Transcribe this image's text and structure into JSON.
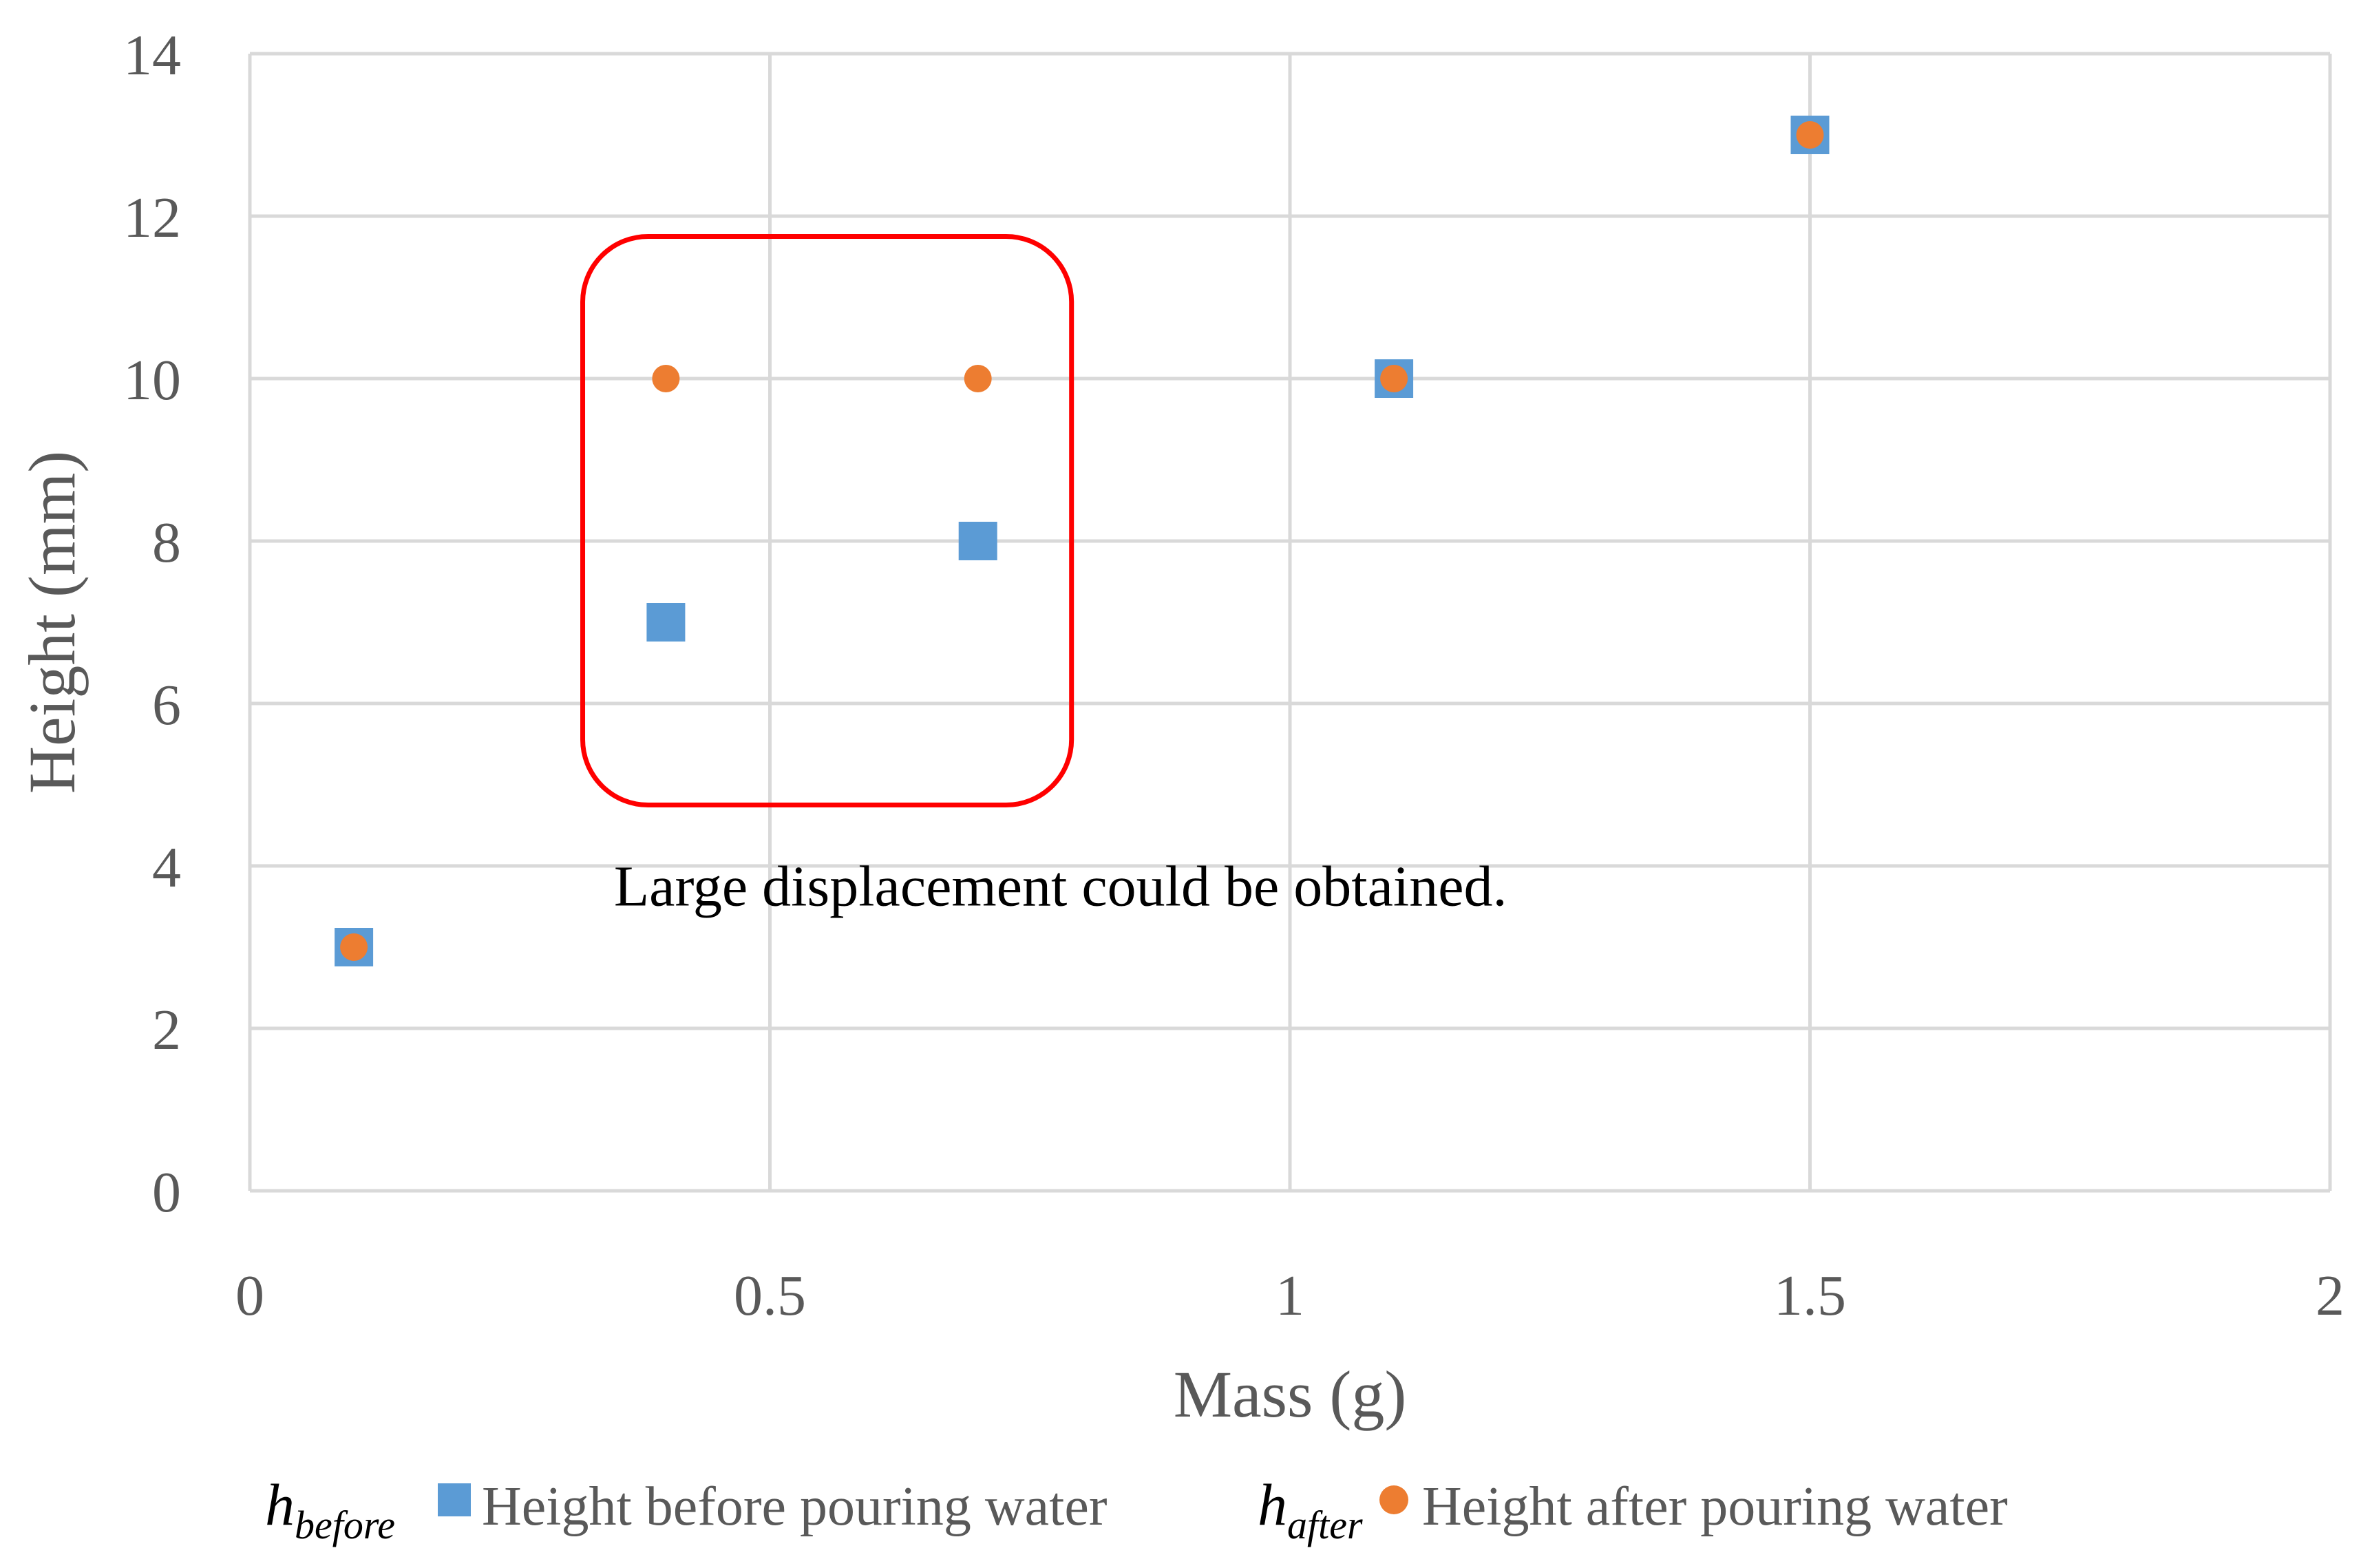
{
  "chart_data": {
    "type": "scatter",
    "title": "",
    "xlabel": "Mass (g)",
    "ylabel": "Height (mm)",
    "xlim": [
      0,
      2
    ],
    "ylim": [
      0,
      14
    ],
    "xticks": [
      0,
      0.5,
      1,
      1.5,
      2
    ],
    "yticks": [
      0,
      2,
      4,
      6,
      8,
      10,
      12,
      14
    ],
    "grid": true,
    "legend_position": "bottom",
    "series": [
      {
        "name": "Height before pouring water",
        "symbol_main": "h",
        "symbol_sub": "before",
        "marker": "square",
        "color": "#5b9bd5",
        "x": [
          0.1,
          0.4,
          0.7,
          1.1,
          1.5
        ],
        "y": [
          3,
          7,
          8,
          10,
          13
        ]
      },
      {
        "name": "Height after pouring water",
        "symbol_main": "h",
        "symbol_sub": "after",
        "marker": "circle",
        "color": "#ed7d31",
        "x": [
          0.1,
          0.4,
          0.7,
          1.1,
          1.5
        ],
        "y": [
          3,
          10,
          10,
          10,
          13
        ]
      }
    ],
    "annotations": [
      {
        "text": "Large displacement could be obtained.",
        "type": "highlight-box",
        "color": "#ff0000",
        "box_x_range": [
          0.32,
          0.79
        ],
        "box_y_range": [
          4.75,
          11.75
        ],
        "text_anchor_x": 0.35,
        "text_anchor_y": 3.75
      }
    ]
  }
}
